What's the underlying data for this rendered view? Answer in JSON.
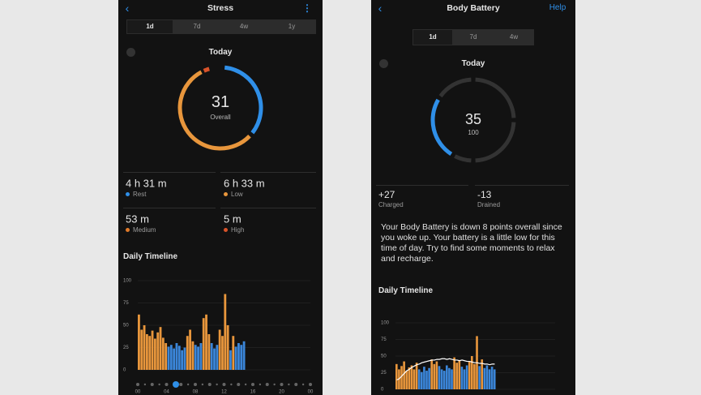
{
  "stress": {
    "header": {
      "title": "Stress"
    },
    "tabs": [
      "1d",
      "7d",
      "4w",
      "1y"
    ],
    "day": "Today",
    "gauge": {
      "value": "31",
      "label": "Overall"
    },
    "stats": [
      {
        "value": "4 h 31 m",
        "label": "Rest",
        "color": "#2f8fe8"
      },
      {
        "value": "6 h 33 m",
        "label": "Low",
        "color": "#e8963c"
      },
      {
        "value": "53 m",
        "label": "Medium",
        "color": "#e07a2a"
      },
      {
        "value": "5 m",
        "label": "High",
        "color": "#d9532a"
      }
    ],
    "timeline": {
      "title": "Daily Timeline",
      "type": "bar",
      "ylim": [
        0,
        100
      ],
      "yticks": [
        0,
        25,
        50,
        75,
        100
      ],
      "xlabels": [
        "00",
        "04",
        "08",
        "12",
        "16",
        "20",
        "00"
      ],
      "series": [
        {
          "color": "#e8963c",
          "values": [
            62,
            45,
            50,
            40,
            38,
            44,
            35,
            42,
            48,
            36,
            30,
            null,
            null,
            null,
            null,
            null,
            null,
            null,
            38,
            45,
            32,
            null,
            null,
            null,
            58,
            62,
            40,
            null,
            null,
            null,
            45,
            38,
            85,
            50,
            null,
            38,
            null,
            null,
            null,
            null
          ]
        },
        {
          "color": "#3b86d9",
          "values": [
            null,
            null,
            null,
            null,
            null,
            null,
            null,
            null,
            null,
            null,
            null,
            26,
            28,
            24,
            30,
            27,
            22,
            25,
            null,
            null,
            null,
            28,
            26,
            30,
            null,
            null,
            null,
            30,
            24,
            28,
            null,
            null,
            null,
            null,
            22,
            null,
            26,
            30,
            28,
            32
          ]
        }
      ]
    }
  },
  "body_battery": {
    "header": {
      "title": "Body Battery",
      "help": "Help"
    },
    "tabs": [
      "1d",
      "7d",
      "4w"
    ],
    "day": "Today",
    "gauge": {
      "value": "35",
      "max": "100"
    },
    "stats": [
      {
        "value": "+27",
        "label": "Charged"
      },
      {
        "value": "-13",
        "label": "Drained"
      }
    ],
    "summary": "Your Body Battery is down 8 points overall since you woke up. Your battery is a little low for this time of day. Try to find some moments to relax and recharge.",
    "timeline": {
      "title": "Daily Timeline",
      "type": "bar",
      "ylim": [
        0,
        100
      ],
      "yticks": [
        0,
        25,
        50,
        75,
        100
      ],
      "series": [
        {
          "color": "#e8963c",
          "values": [
            38,
            30,
            35,
            42,
            28,
            33,
            36,
            30,
            40,
            null,
            null,
            null,
            null,
            null,
            45,
            38,
            42,
            null,
            null,
            null,
            null,
            null,
            null,
            48,
            40,
            44,
            null,
            null,
            null,
            42,
            50,
            38,
            80,
            null,
            45,
            null,
            null,
            null,
            null,
            null
          ]
        },
        {
          "color": "#3b86d9",
          "values": [
            null,
            null,
            null,
            null,
            null,
            null,
            null,
            null,
            null,
            30,
            26,
            34,
            28,
            32,
            null,
            null,
            null,
            35,
            30,
            28,
            36,
            32,
            30,
            null,
            null,
            null,
            34,
            30,
            36,
            null,
            null,
            null,
            null,
            35,
            null,
            32,
            36,
            30,
            34,
            30
          ]
        }
      ],
      "line": {
        "color": "#ffffff",
        "values": [
          14,
          16,
          20,
          24,
          28,
          30,
          33,
          35,
          37,
          38,
          40,
          41,
          42,
          43,
          44,
          44,
          45,
          45,
          46,
          46,
          45,
          46,
          45,
          44,
          44,
          43,
          44,
          43,
          42,
          42,
          41,
          40,
          40,
          39,
          39,
          38,
          38,
          37,
          38,
          38
        ]
      }
    }
  }
}
